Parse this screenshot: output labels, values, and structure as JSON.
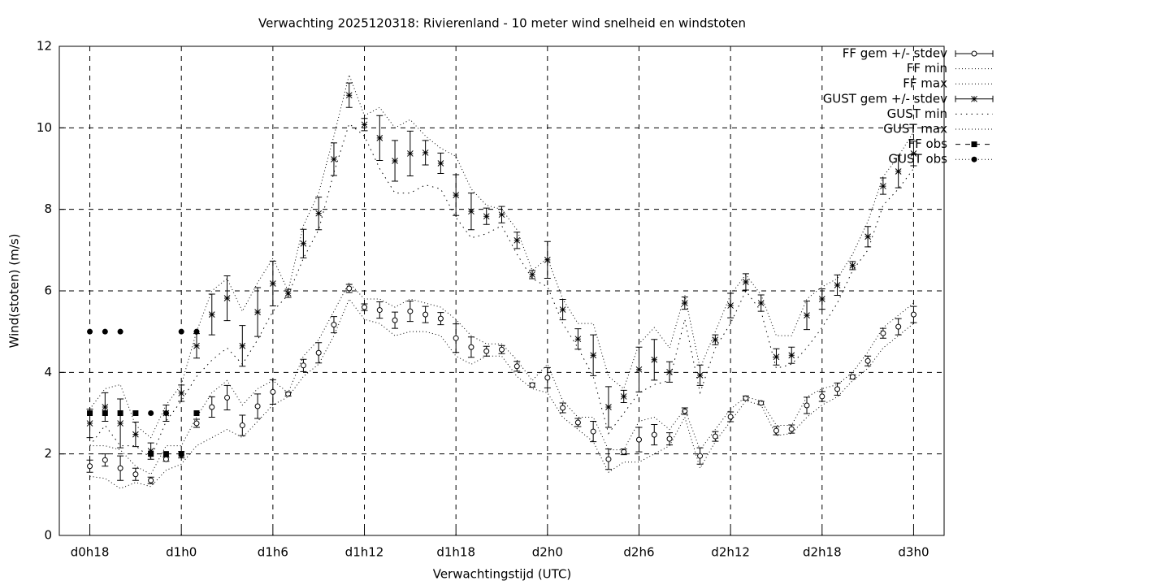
{
  "chart_data": {
    "type": "errorbar",
    "title": "Verwachting 2025120318: Rivierenland - 10 meter wind snelheid en windstoten",
    "x_label": "Verwachtingstijd (UTC)",
    "y_label": "Wind(stoten) (m/s)",
    "x": [
      18,
      19,
      20,
      21,
      22,
      23,
      24,
      25,
      26,
      27,
      28,
      29,
      30,
      31,
      32,
      33,
      34,
      35,
      36,
      37,
      38,
      39,
      40,
      41,
      42,
      43,
      44,
      45,
      46,
      47,
      48,
      49,
      50,
      51,
      52,
      53,
      54,
      55,
      56,
      57,
      58,
      59,
      60,
      61,
      62,
      63,
      64,
      65,
      66,
      67,
      68,
      69,
      70,
      71,
      72
    ],
    "xlim": [
      16,
      74
    ],
    "xticks": [
      {
        "value": 18,
        "label": "d0h18"
      },
      {
        "value": 24,
        "label": "d1h0"
      },
      {
        "value": 30,
        "label": "d1h6"
      },
      {
        "value": 36,
        "label": "d1h12"
      },
      {
        "value": 42,
        "label": "d1h18"
      },
      {
        "value": 48,
        "label": "d2h0"
      },
      {
        "value": 54,
        "label": "d2h6"
      },
      {
        "value": 60,
        "label": "d2h12"
      },
      {
        "value": 66,
        "label": "d2h18"
      },
      {
        "value": 72,
        "label": "d3h0"
      }
    ],
    "ylim": [
      0,
      12
    ],
    "yticks": [
      0,
      2,
      4,
      6,
      8,
      10,
      12
    ],
    "grid": true,
    "legend": "outside-right",
    "series": [
      {
        "name": "FF gem +/- stdev",
        "color": "#000000",
        "style": "errorbars",
        "marker": "circle",
        "values": [
          1.7,
          1.85,
          1.65,
          1.5,
          1.35,
          1.87,
          1.98,
          2.75,
          3.15,
          3.38,
          2.7,
          3.17,
          3.52,
          3.47,
          4.17,
          4.48,
          5.17,
          6.06,
          5.6,
          5.53,
          5.28,
          5.5,
          5.42,
          5.32,
          4.84,
          4.62,
          4.52,
          4.56,
          4.15,
          3.69,
          3.87,
          3.13,
          2.77,
          2.55,
          1.87,
          2.05,
          2.35,
          2.47,
          2.37,
          3.05,
          1.95,
          2.43,
          2.91,
          3.37,
          3.25,
          2.57,
          2.61,
          3.19,
          3.41,
          3.59,
          3.89,
          4.28,
          4.96,
          5.12,
          5.42
        ],
        "errors": [
          0.15,
          0.15,
          0.3,
          0.15,
          0.08,
          0.05,
          0.08,
          0.1,
          0.25,
          0.3,
          0.25,
          0.3,
          0.3,
          0.05,
          0.15,
          0.25,
          0.2,
          0.1,
          0.08,
          0.2,
          0.2,
          0.25,
          0.2,
          0.15,
          0.35,
          0.25,
          0.12,
          0.1,
          0.12,
          0.05,
          0.25,
          0.12,
          0.1,
          0.25,
          0.25,
          0.07,
          0.3,
          0.25,
          0.15,
          0.08,
          0.2,
          0.12,
          0.12,
          0.05,
          0.04,
          0.1,
          0.1,
          0.2,
          0.12,
          0.15,
          0.05,
          0.12,
          0.12,
          0.2,
          0.2
        ]
      },
      {
        "name": "FF min",
        "color": "#000000",
        "style": "dotted",
        "values": [
          1.45,
          1.4,
          1.15,
          1.3,
          1.2,
          1.6,
          1.75,
          2.2,
          2.4,
          2.6,
          2.4,
          2.8,
          3.2,
          3.4,
          3.9,
          4.2,
          4.9,
          5.8,
          5.3,
          5.2,
          4.9,
          5.0,
          5.0,
          4.9,
          4.4,
          4.2,
          4.4,
          4.4,
          3.9,
          3.6,
          3.5,
          2.9,
          2.6,
          2.3,
          1.55,
          1.8,
          1.8,
          2.0,
          2.2,
          2.9,
          1.65,
          2.3,
          2.8,
          3.3,
          3.2,
          2.45,
          2.5,
          2.9,
          3.2,
          3.4,
          3.8,
          4.1,
          4.6,
          4.9,
          5.2
        ]
      },
      {
        "name": "FF max",
        "color": "#000000",
        "style": "dotted",
        "values": [
          2.2,
          2.2,
          2.1,
          1.7,
          1.5,
          2.2,
          2.2,
          2.9,
          3.5,
          3.8,
          3.2,
          3.6,
          3.8,
          3.5,
          4.4,
          4.8,
          5.5,
          6.2,
          5.8,
          5.8,
          5.6,
          5.8,
          5.7,
          5.6,
          5.3,
          4.9,
          4.7,
          4.7,
          4.3,
          3.8,
          4.2,
          3.3,
          2.9,
          2.9,
          2.1,
          2.1,
          2.8,
          2.9,
          2.6,
          3.1,
          2.1,
          2.6,
          3.1,
          3.4,
          3.3,
          2.7,
          2.7,
          3.4,
          3.6,
          3.7,
          4.0,
          4.5,
          5.1,
          5.4,
          5.7
        ]
      },
      {
        "name": "GUST gem +/- stdev",
        "color": "#000000",
        "style": "errorbars",
        "marker": "star",
        "values": [
          2.75,
          3.15,
          2.75,
          2.48,
          2.07,
          3.0,
          3.49,
          4.65,
          5.42,
          5.82,
          4.65,
          5.48,
          6.18,
          5.94,
          7.16,
          7.9,
          9.23,
          10.8,
          10.08,
          9.75,
          9.19,
          9.37,
          9.39,
          9.13,
          8.35,
          7.95,
          7.83,
          7.87,
          7.24,
          6.4,
          6.76,
          5.54,
          4.82,
          4.42,
          3.15,
          3.41,
          4.07,
          4.31,
          4.01,
          5.7,
          3.93,
          4.8,
          5.64,
          6.22,
          5.7,
          4.38,
          4.42,
          5.4,
          5.8,
          6.14,
          6.62,
          7.33,
          8.57,
          8.93,
          9.37
        ],
        "errors": [
          0.35,
          0.35,
          0.6,
          0.3,
          0.2,
          0.2,
          0.2,
          0.3,
          0.5,
          0.55,
          0.5,
          0.6,
          0.55,
          0.1,
          0.35,
          0.4,
          0.4,
          0.3,
          0.15,
          0.55,
          0.5,
          0.55,
          0.3,
          0.25,
          0.5,
          0.45,
          0.2,
          0.2,
          0.2,
          0.1,
          0.45,
          0.25,
          0.25,
          0.5,
          0.5,
          0.15,
          0.55,
          0.5,
          0.25,
          0.15,
          0.25,
          0.12,
          0.3,
          0.2,
          0.2,
          0.2,
          0.2,
          0.35,
          0.25,
          0.25,
          0.1,
          0.25,
          0.2,
          0.4,
          0.3
        ]
      },
      {
        "name": "GUST min",
        "color": "#000000",
        "style": "dotted-wide",
        "values": [
          2.2,
          2.7,
          2.2,
          2.2,
          1.9,
          2.8,
          3.3,
          3.9,
          4.3,
          4.6,
          4.2,
          4.8,
          5.5,
          5.9,
          6.8,
          7.5,
          8.9,
          10.1,
          9.8,
          9.0,
          8.4,
          8.4,
          8.6,
          8.5,
          7.8,
          7.3,
          7.4,
          7.6,
          6.9,
          6.3,
          6.1,
          5.2,
          4.6,
          3.9,
          2.5,
          3.0,
          3.5,
          3.7,
          3.8,
          5.3,
          3.5,
          4.6,
          5.2,
          6.0,
          5.5,
          4.1,
          4.2,
          4.6,
          5.1,
          5.7,
          6.5,
          7.0,
          8.1,
          8.5,
          9.0
        ]
      },
      {
        "name": "GUST max",
        "color": "#000000",
        "style": "dotted",
        "values": [
          3.1,
          3.6,
          3.7,
          2.7,
          2.4,
          3.2,
          3.7,
          5.0,
          6.0,
          6.3,
          5.5,
          6.2,
          6.8,
          6.0,
          7.6,
          8.4,
          9.8,
          11.3,
          10.3,
          10.5,
          10.0,
          10.2,
          9.8,
          9.5,
          9.3,
          8.5,
          8.1,
          8.0,
          7.5,
          6.5,
          6.8,
          5.8,
          5.2,
          5.2,
          3.9,
          3.6,
          4.7,
          5.1,
          4.6,
          5.9,
          4.1,
          5.0,
          5.9,
          6.4,
          5.9,
          4.9,
          4.9,
          5.8,
          6.1,
          6.3,
          6.9,
          7.7,
          8.8,
          9.3,
          9.9
        ]
      },
      {
        "name": "FF obs",
        "color": "#000000",
        "style": "points",
        "marker": "square",
        "x": [
          18,
          19,
          20,
          21,
          22,
          23,
          24,
          25
        ],
        "values": [
          3,
          3,
          3,
          3,
          2,
          2,
          2,
          3
        ]
      },
      {
        "name": "GUST obs",
        "color": "#000000",
        "style": "points",
        "marker": "dot",
        "x": [
          18,
          19,
          20,
          22,
          23,
          24,
          25
        ],
        "values": [
          5,
          5,
          5,
          3,
          3,
          5,
          5
        ]
      }
    ]
  }
}
